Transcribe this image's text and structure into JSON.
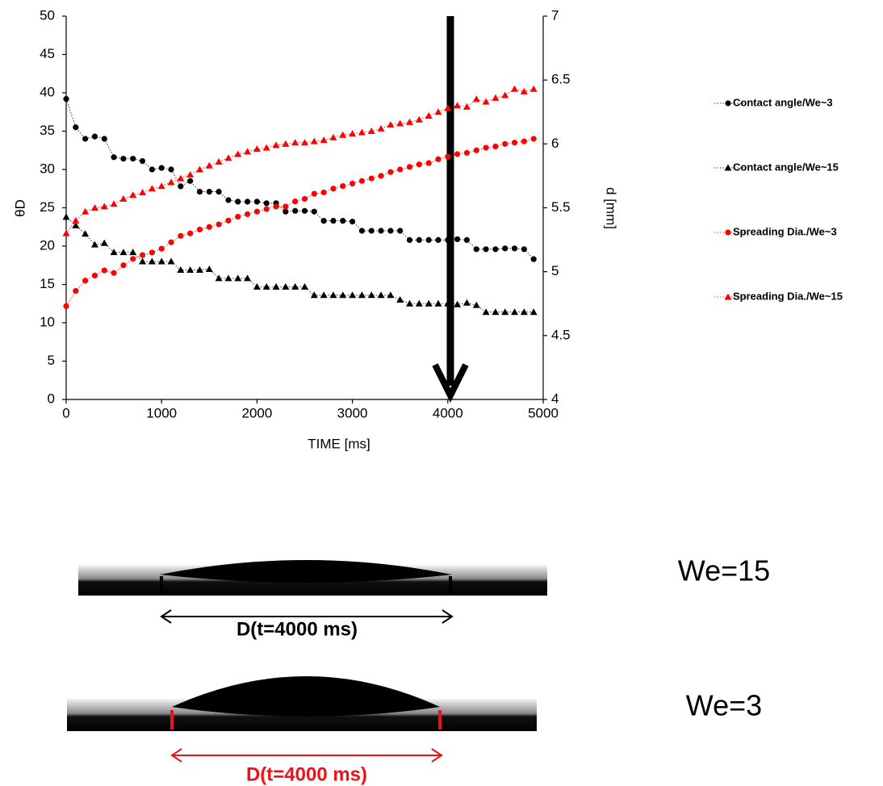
{
  "chart_data": {
    "type": "line",
    "xlabel": "TIME [ms]",
    "ylabel": "θD",
    "y2label": "d [mm]",
    "xlim": [
      0,
      5000
    ],
    "xticks": [
      0,
      1000,
      2000,
      3000,
      4000,
      5000
    ],
    "ylim": [
      0,
      50
    ],
    "yticks": [
      0,
      5,
      10,
      15,
      20,
      25,
      30,
      35,
      40,
      45,
      50
    ],
    "y2lim": [
      4,
      7
    ],
    "y2ticks": [
      4,
      4.5,
      5,
      5.5,
      6,
      6.5,
      7
    ],
    "legend": "right",
    "x": [
      0,
      100,
      200,
      300,
      400,
      500,
      600,
      700,
      800,
      900,
      1000,
      1100,
      1200,
      1300,
      1400,
      1500,
      1600,
      1700,
      1800,
      1900,
      2000,
      2100,
      2200,
      2300,
      2400,
      2500,
      2600,
      2700,
      2800,
      2900,
      3000,
      3100,
      3200,
      3300,
      3400,
      3500,
      3600,
      3700,
      3800,
      3900,
      4000,
      4100,
      4200,
      4300,
      4400,
      4500,
      4600,
      4700,
      4800,
      4900
    ],
    "series": [
      {
        "name": "Contact angle/We~3",
        "color": "#000000",
        "marker": "circle",
        "values": [
          39.2,
          35.5,
          34,
          34.3,
          34,
          31.6,
          31.4,
          31.4,
          31.1,
          30,
          30.2,
          30,
          27.8,
          28.5,
          27.1,
          27.1,
          27.1,
          26,
          25.8,
          25.8,
          25.8,
          25.6,
          25.6,
          24.5,
          24.6,
          24.6,
          24.5,
          23.3,
          23.3,
          23.3,
          23.2,
          22,
          22,
          22,
          22,
          22,
          20.8,
          20.8,
          20.8,
          20.8,
          20.8,
          20.9,
          20.8,
          19.6,
          19.6,
          19.6,
          19.7,
          19.7,
          19.6,
          18.3
        ]
      },
      {
        "name": "Contact angle/We~15",
        "color": "#000000",
        "marker": "triangle",
        "values": [
          23.8,
          22.7,
          21.6,
          20.2,
          20.4,
          19.2,
          19.2,
          19.2,
          18,
          18,
          18,
          18,
          16.9,
          16.9,
          16.9,
          17,
          15.8,
          15.8,
          15.8,
          15.8,
          14.7,
          14.7,
          14.7,
          14.7,
          14.7,
          14.7,
          13.6,
          13.6,
          13.6,
          13.6,
          13.6,
          13.6,
          13.6,
          13.6,
          13.6,
          13,
          12.5,
          12.5,
          12.5,
          12.5,
          12.5,
          12.4,
          12.6,
          12.3,
          11.4,
          11.4,
          11.4,
          11.4,
          11.4,
          11.4
        ]
      },
      {
        "name": "Spreading Dia./We~3",
        "color": "#ff0000",
        "marker": "circle",
        "axis": "y2",
        "values": [
          4.73,
          4.85,
          4.93,
          4.97,
          5.01,
          4.99,
          5.05,
          5.1,
          5.13,
          5.15,
          5.18,
          5.23,
          5.28,
          5.3,
          5.33,
          5.35,
          5.37,
          5.4,
          5.43,
          5.45,
          5.47,
          5.49,
          5.51,
          5.51,
          5.55,
          5.57,
          5.61,
          5.62,
          5.65,
          5.67,
          5.69,
          5.71,
          5.73,
          5.75,
          5.78,
          5.8,
          5.82,
          5.84,
          5.85,
          5.88,
          5.9,
          5.92,
          5.93,
          5.95,
          5.97,
          5.98,
          6,
          6.01,
          6.02,
          6.04
        ]
      },
      {
        "name": "Spreading Dia./We~15",
        "color": "#ff0000",
        "marker": "triangle",
        "axis": "y2",
        "values": [
          5.3,
          5.4,
          5.47,
          5.5,
          5.51,
          5.53,
          5.57,
          5.6,
          5.62,
          5.65,
          5.67,
          5.7,
          5.73,
          5.76,
          5.8,
          5.83,
          5.86,
          5.89,
          5.92,
          5.94,
          5.96,
          5.97,
          5.99,
          6,
          6.01,
          6.01,
          6.02,
          6.03,
          6.05,
          6.07,
          6.08,
          6.09,
          6.1,
          6.12,
          6.15,
          6.16,
          6.17,
          6.19,
          6.22,
          6.25,
          6.28,
          6.3,
          6.29,
          6.35,
          6.33,
          6.36,
          6.38,
          6.43,
          6.41,
          6.43
        ]
      }
    ]
  },
  "images": [
    {
      "label": "We=15",
      "caption": "D(t=4000 ms)"
    },
    {
      "label": "We=3",
      "caption": "D(t=4000 ms)"
    }
  ]
}
